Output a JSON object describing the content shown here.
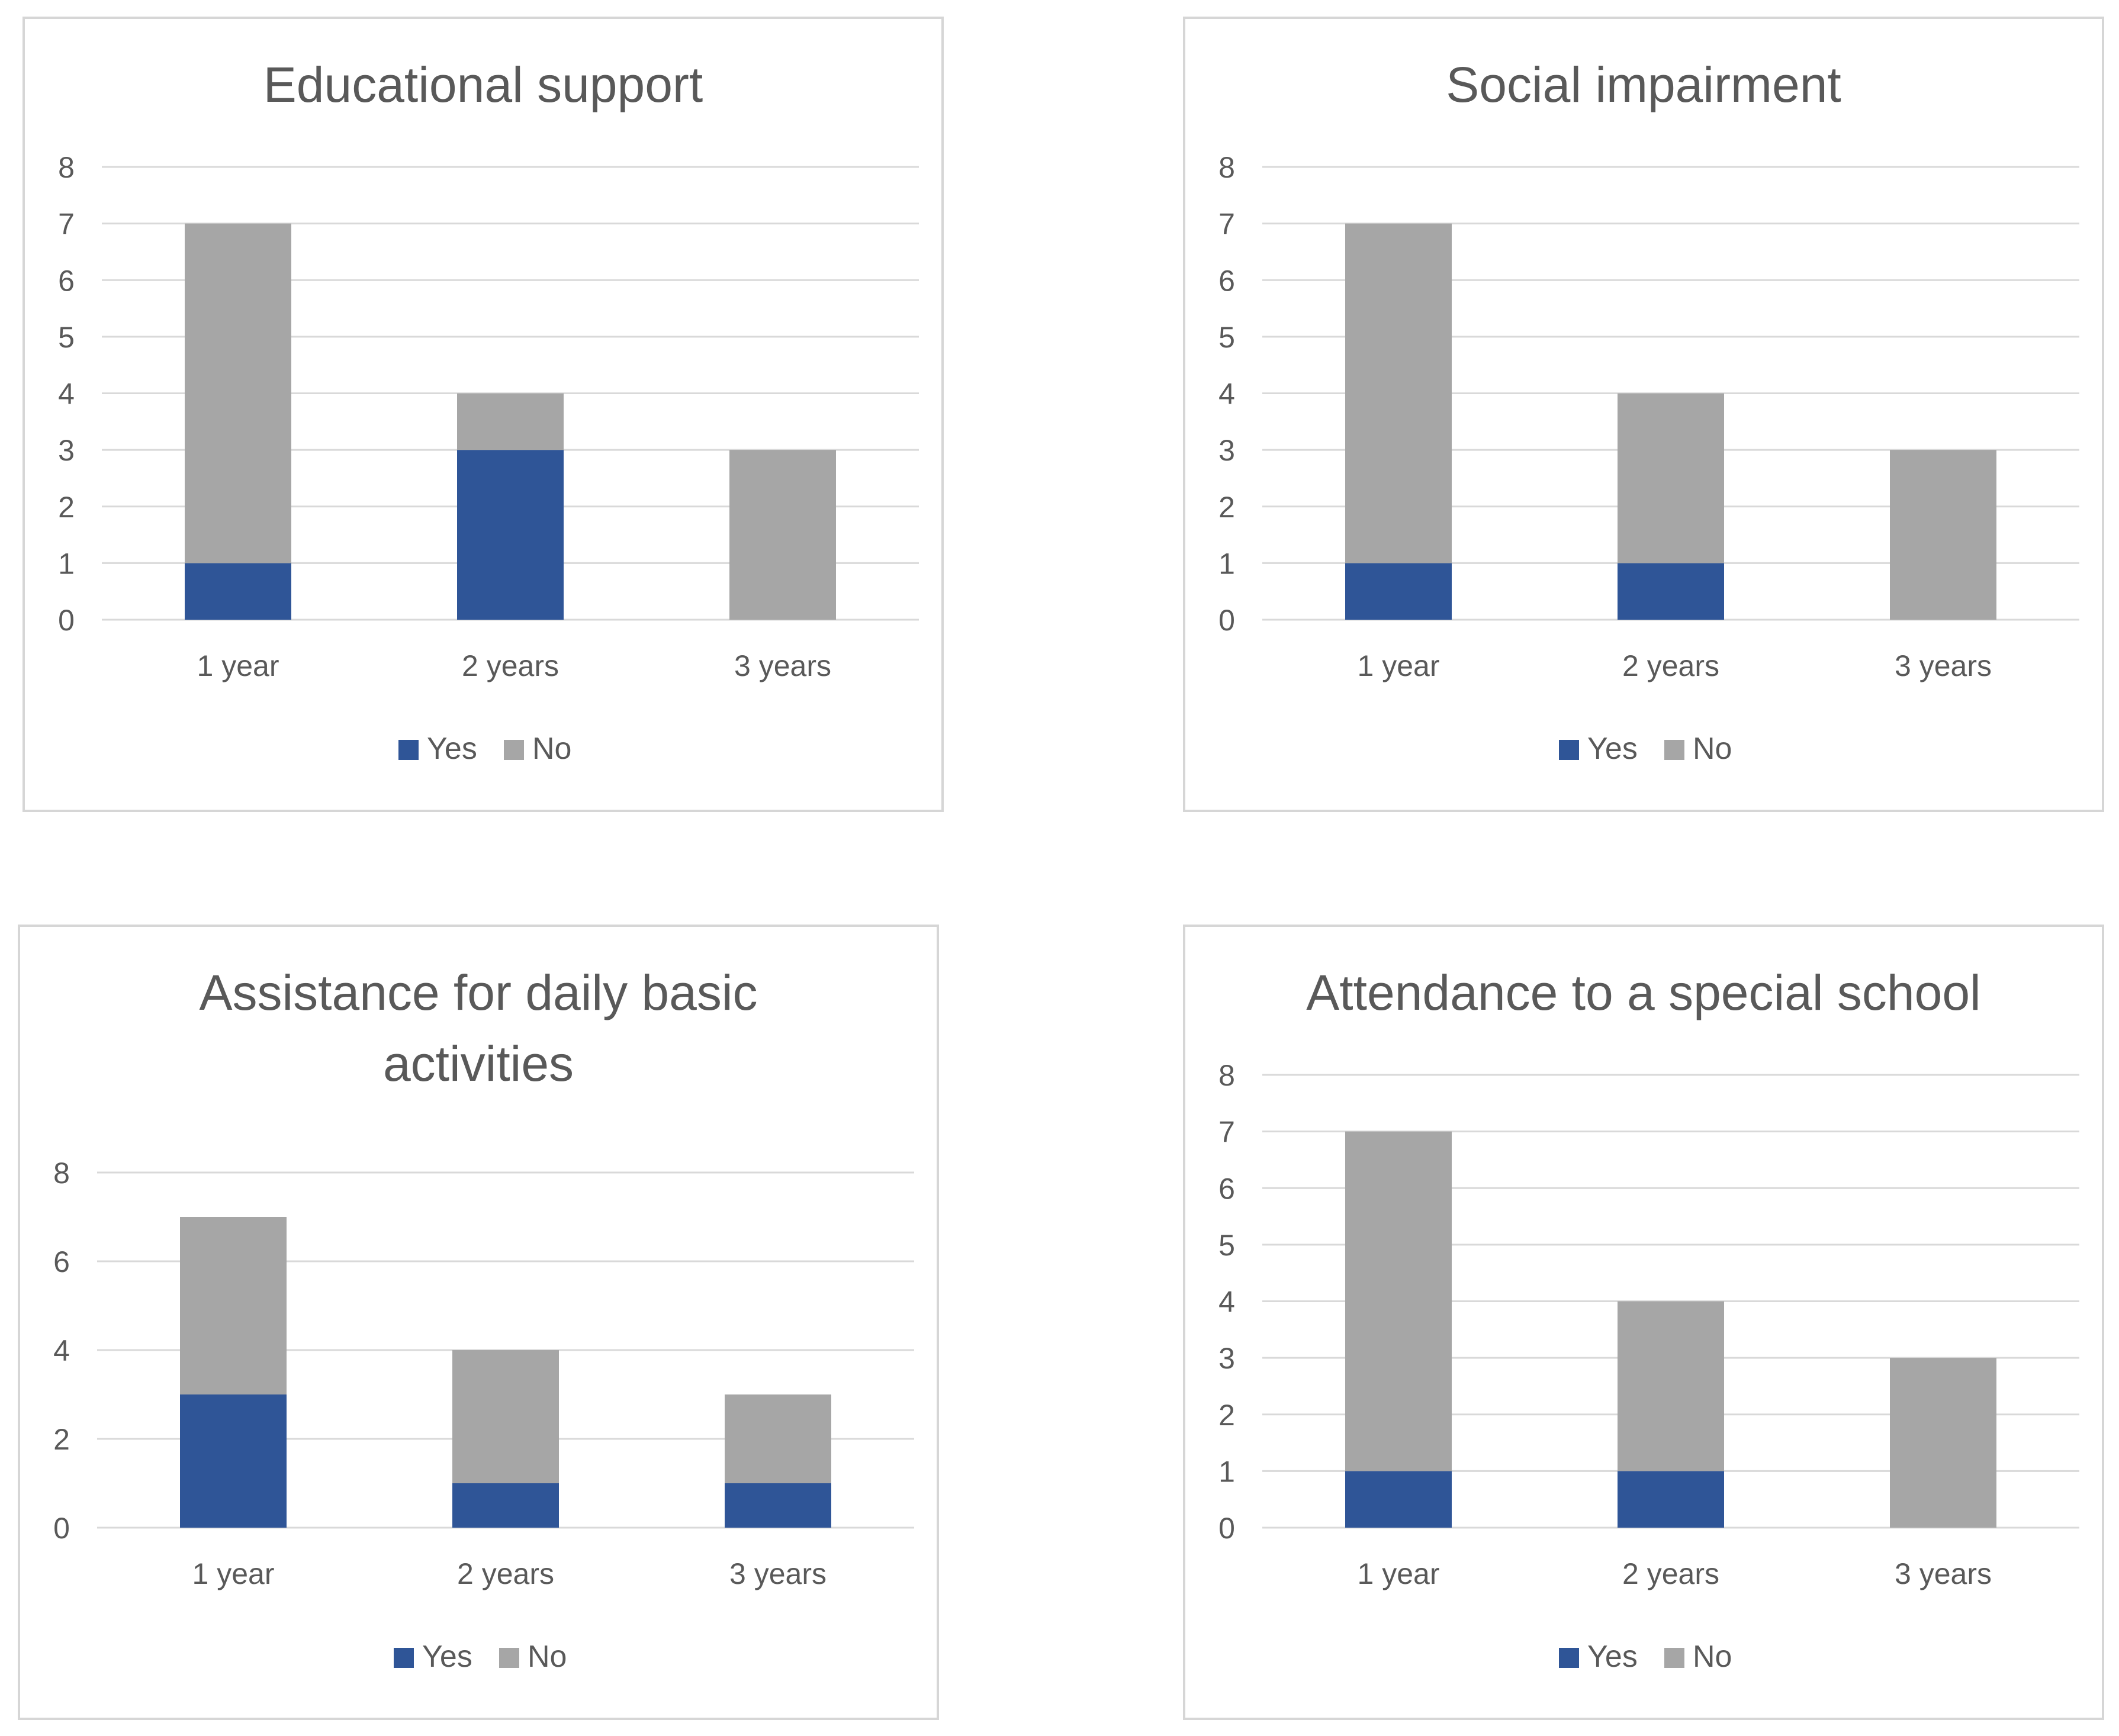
{
  "colors": {
    "yes": "#2f5597",
    "no": "#a6a6a6"
  },
  "chart_data": [
    {
      "type": "bar",
      "stacked": true,
      "title": [
        "Educational support"
      ],
      "categories": [
        "1 year",
        "2 years",
        "3 years"
      ],
      "series": [
        {
          "name": "Yes",
          "values": [
            1,
            3,
            0
          ]
        },
        {
          "name": "No",
          "values": [
            6,
            1,
            3
          ]
        }
      ],
      "yticks": [
        "0",
        "1",
        "2",
        "3",
        "4",
        "5",
        "6",
        "7",
        "8"
      ],
      "ylim": [
        0,
        8
      ],
      "legend": "bottom"
    },
    {
      "type": "bar",
      "stacked": true,
      "title": [
        "Social impairment"
      ],
      "categories": [
        "1 year",
        "2 years",
        "3 years"
      ],
      "series": [
        {
          "name": "Yes",
          "values": [
            1,
            1,
            0
          ]
        },
        {
          "name": "No",
          "values": [
            6,
            3,
            3
          ]
        }
      ],
      "yticks": [
        "0",
        "1",
        "2",
        "3",
        "4",
        "5",
        "6",
        "7",
        "8"
      ],
      "ylim": [
        0,
        8
      ],
      "legend": "bottom"
    },
    {
      "type": "bar",
      "stacked": true,
      "title": [
        "Assistance for daily basic",
        "activities"
      ],
      "categories": [
        "1 year",
        "2 years",
        "3 years"
      ],
      "series": [
        {
          "name": "Yes",
          "values": [
            3,
            1,
            1
          ]
        },
        {
          "name": "No",
          "values": [
            4,
            3,
            2
          ]
        }
      ],
      "yticks": [
        "0",
        "2",
        "4",
        "6",
        "8"
      ],
      "ylim": [
        0,
        8
      ],
      "legend": "bottom"
    },
    {
      "type": "bar",
      "stacked": true,
      "title": [
        "Attendance to a special school"
      ],
      "categories": [
        "1 year",
        "2 years",
        "3 years"
      ],
      "series": [
        {
          "name": "Yes",
          "values": [
            1,
            1,
            0
          ]
        },
        {
          "name": "No",
          "values": [
            6,
            3,
            3
          ]
        }
      ],
      "yticks": [
        "0",
        "1",
        "2",
        "3",
        "4",
        "5",
        "6",
        "7",
        "8"
      ],
      "ylim": [
        0,
        8
      ],
      "legend": "bottom"
    }
  ]
}
